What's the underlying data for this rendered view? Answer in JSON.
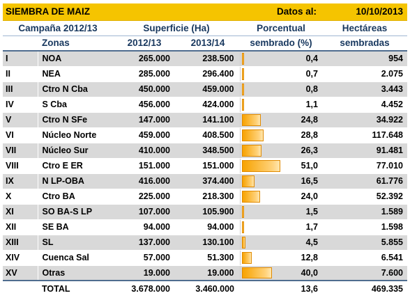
{
  "header": {
    "title": "SIEMBRA DE MAIZ",
    "date_label": "Datos al:",
    "date_value": "10/10/2013"
  },
  "columns": {
    "campaign": "Campaña 2012/13",
    "surface": "Superficie (Ha)",
    "percent_line1": "Porcentual",
    "percent_line2": "sembrado (%)",
    "hectares_line1": "Hectáreas",
    "hectares_line2": "sembradas",
    "zones": "Zonas",
    "year1": "2012/13",
    "year2": "2013/14"
  },
  "rows": [
    {
      "id": "I",
      "zone": "NOA",
      "s2012": "265.000",
      "s2013": "238.500",
      "pct": "0,4",
      "pct_value": 0.4,
      "ha": "954"
    },
    {
      "id": "II",
      "zone": "NEA",
      "s2012": "285.000",
      "s2013": "296.400",
      "pct": "0,7",
      "pct_value": 0.7,
      "ha": "2.075"
    },
    {
      "id": "III",
      "zone": "Ctro N Cba",
      "s2012": "450.000",
      "s2013": "459.000",
      "pct": "0,8",
      "pct_value": 0.8,
      "ha": "3.443"
    },
    {
      "id": "IV",
      "zone": "S Cba",
      "s2012": "456.000",
      "s2013": "424.000",
      "pct": "1,1",
      "pct_value": 1.1,
      "ha": "4.452"
    },
    {
      "id": "V",
      "zone": "Ctro N SFe",
      "s2012": "147.000",
      "s2013": "141.100",
      "pct": "24,8",
      "pct_value": 24.8,
      "ha": "34.922"
    },
    {
      "id": "VI",
      "zone": "Núcleo Norte",
      "s2012": "459.000",
      "s2013": "408.500",
      "pct": "28,8",
      "pct_value": 28.8,
      "ha": "117.648"
    },
    {
      "id": "VII",
      "zone": "Núcleo Sur",
      "s2012": "410.000",
      "s2013": "348.500",
      "pct": "26,3",
      "pct_value": 26.3,
      "ha": "91.481"
    },
    {
      "id": "VIII",
      "zone": "Ctro E ER",
      "s2012": "151.000",
      "s2013": "151.000",
      "pct": "51,0",
      "pct_value": 51.0,
      "ha": "77.010"
    },
    {
      "id": "IX",
      "zone": "N LP-OBA",
      "s2012": "416.000",
      "s2013": "374.400",
      "pct": "16,5",
      "pct_value": 16.5,
      "ha": "61.776"
    },
    {
      "id": "X",
      "zone": "Ctro BA",
      "s2012": "225.000",
      "s2013": "218.300",
      "pct": "24,0",
      "pct_value": 24.0,
      "ha": "52.392"
    },
    {
      "id": "XI",
      "zone": "SO BA-S LP",
      "s2012": "107.000",
      "s2013": "105.900",
      "pct": "1,5",
      "pct_value": 1.5,
      "ha": "1.589"
    },
    {
      "id": "XII",
      "zone": "SE BA",
      "s2012": "94.000",
      "s2013": "94.000",
      "pct": "1,7",
      "pct_value": 1.7,
      "ha": "1.598"
    },
    {
      "id": "XIII",
      "zone": "SL",
      "s2012": "137.000",
      "s2013": "130.100",
      "pct": "4,5",
      "pct_value": 4.5,
      "ha": "5.855"
    },
    {
      "id": "XIV",
      "zone": "Cuenca Sal",
      "s2012": "57.000",
      "s2013": "51.300",
      "pct": "12,8",
      "pct_value": 12.8,
      "ha": "6.541"
    },
    {
      "id": "XV",
      "zone": "Otras",
      "s2012": "19.000",
      "s2013": "19.000",
      "pct": "40,0",
      "pct_value": 40.0,
      "ha": "7.600"
    }
  ],
  "total": {
    "label": "TOTAL",
    "s2012": "3.678.000",
    "s2013": "3.460.000",
    "pct": "13,6",
    "ha": "469.335"
  }
}
